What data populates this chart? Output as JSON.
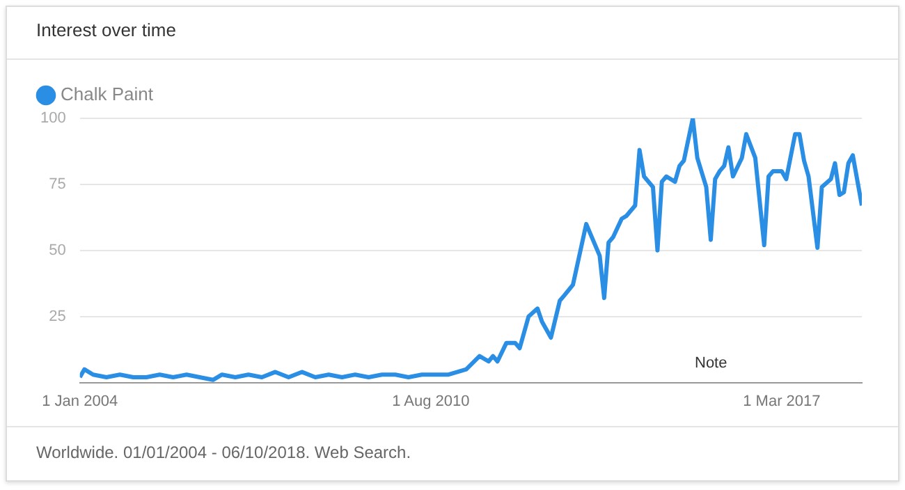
{
  "chart_data": {
    "type": "line",
    "title": "Interest over time",
    "legend": "top left",
    "grid": "y",
    "x": [
      "2004-01",
      "2004-02",
      "2004-04",
      "2004-07",
      "2004-10",
      "2005-01",
      "2005-04",
      "2005-07",
      "2005-10",
      "2006-01",
      "2006-04",
      "2006-07",
      "2006-09",
      "2006-12",
      "2007-03",
      "2007-06",
      "2007-09",
      "2007-12",
      "2008-03",
      "2008-06",
      "2008-09",
      "2008-12",
      "2009-03",
      "2009-06",
      "2009-09",
      "2009-12",
      "2010-03",
      "2010-06",
      "2010-09",
      "2010-12",
      "2011-04",
      "2011-07",
      "2011-09",
      "2011-10",
      "2011-11",
      "2012-01",
      "2012-03",
      "2012-04",
      "2012-06",
      "2012-08",
      "2012-09",
      "2012-11",
      "2013-01",
      "2013-02",
      "2013-04",
      "2013-07",
      "2013-10",
      "2013-11",
      "2013-12",
      "2014-01",
      "2014-03",
      "2014-04",
      "2014-06",
      "2014-07",
      "2014-08",
      "2014-10",
      "2014-11",
      "2014-12",
      "2015-01",
      "2015-03",
      "2015-04",
      "2015-05",
      "2015-07",
      "2015-08",
      "2015-10",
      "2015-11",
      "2015-12",
      "2016-01",
      "2016-02",
      "2016-03",
      "2016-04",
      "2016-06",
      "2016-07",
      "2016-09",
      "2016-11",
      "2016-12",
      "2017-01",
      "2017-03",
      "2017-04",
      "2017-06",
      "2017-07",
      "2017-08",
      "2017-09",
      "2017-11",
      "2017-12",
      "2018-02",
      "2018-03",
      "2018-04",
      "2018-05",
      "2018-06",
      "2018-07",
      "2018-09"
    ],
    "series": [
      {
        "name": "Chalk Paint",
        "color": "#2a8fe4",
        "values": [
          2,
          5,
          3,
          2,
          3,
          2,
          2,
          3,
          2,
          3,
          2,
          1,
          3,
          2,
          3,
          2,
          4,
          2,
          4,
          2,
          3,
          2,
          3,
          2,
          3,
          3,
          2,
          3,
          3,
          3,
          5,
          10,
          8,
          10,
          8,
          15,
          15,
          13,
          25,
          28,
          23,
          17,
          31,
          33,
          37,
          60,
          48,
          32,
          53,
          55,
          62,
          63,
          67,
          88,
          78,
          74,
          50,
          76,
          78,
          76,
          82,
          84,
          100,
          85,
          74,
          54,
          77,
          80,
          82,
          89,
          78,
          85,
          94,
          85,
          52,
          78,
          80,
          80,
          77,
          94,
          94,
          84,
          78,
          51,
          74,
          77,
          83,
          71,
          72,
          83,
          86,
          67
        ]
      }
    ],
    "xlim": [
      "2004-01",
      "2018-09"
    ],
    "xticks": [
      {
        "value": "2004-01-01",
        "label": "1 Jan 2004"
      },
      {
        "value": "2010-08-01",
        "label": "1 Aug 2010"
      },
      {
        "value": "2017-03-01",
        "label": "1 Mar 2017"
      }
    ],
    "ylim": [
      0,
      100
    ],
    "yticks": [
      25,
      50,
      75,
      100
    ],
    "annotations": [
      "Note",
      "Worldwide. 01/01/2004 - 06/10/2018. Web Search."
    ]
  }
}
